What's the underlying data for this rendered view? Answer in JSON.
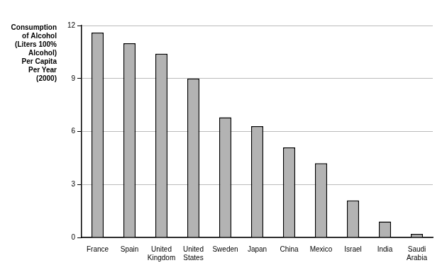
{
  "chart_data": {
    "type": "bar",
    "ylabel": [
      "Consumption",
      "of Alcohol",
      "(Liters 100%",
      "Alcohol)",
      "Per Capita",
      "Per Year",
      "(2000)"
    ],
    "categories": [
      "France",
      "Spain",
      "United Kingdom",
      "United States",
      "Sweden",
      "Japan",
      "China",
      "Mexico",
      "Israel",
      "India",
      "Saudi Arabia"
    ],
    "values": [
      11.6,
      11.0,
      10.4,
      9.0,
      6.8,
      6.3,
      5.1,
      4.2,
      2.1,
      0.9,
      0.2
    ],
    "color": "#b3b3b3",
    "ylim": [
      0,
      12
    ],
    "yticks": [
      0,
      3,
      6,
      9,
      12
    ],
    "grid": true
  }
}
